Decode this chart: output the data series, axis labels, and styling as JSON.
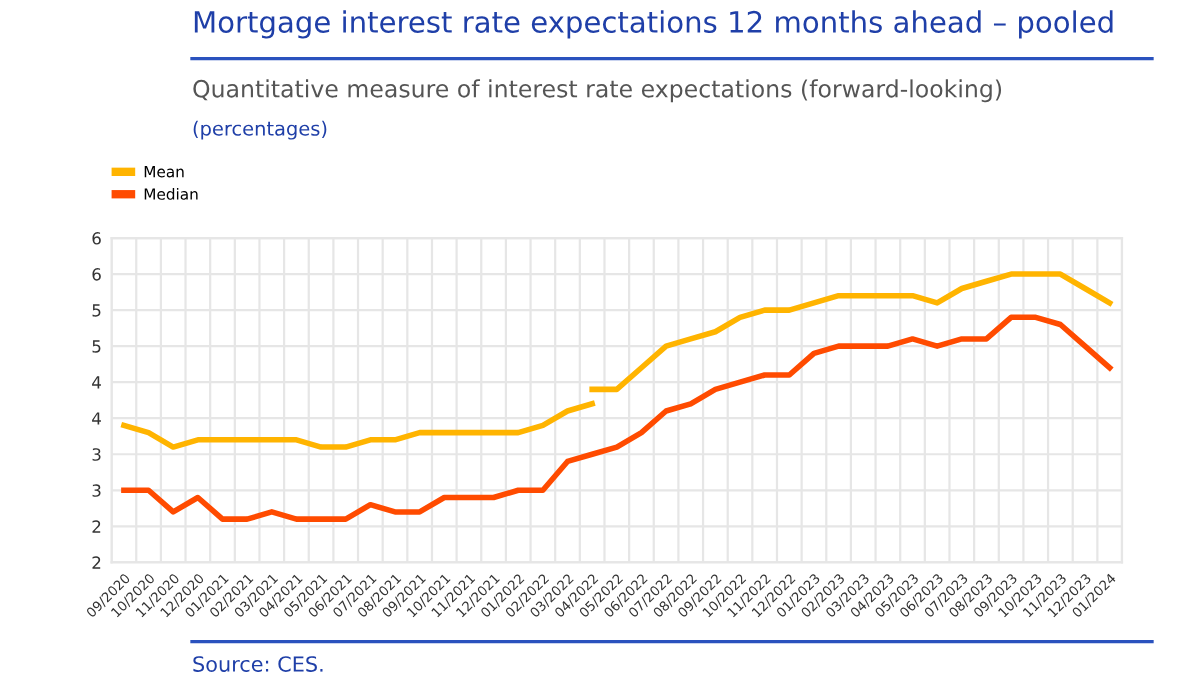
{
  "chart_data": {
    "type": "line",
    "title": "Mortgage interest rate expectations 12 months ahead – pooled",
    "subtitle": "Quantitative measure of interest rate expectations (forward-looking)",
    "annotations": [
      "(percentages)",
      "Source: CES."
    ],
    "categories": [
      "09/2020",
      "10/2020",
      "11/2020",
      "12/2020",
      "01/2021",
      "02/2021",
      "03/2021",
      "04/2021",
      "05/2021",
      "06/2021",
      "07/2021",
      "08/2021",
      "09/2021",
      "10/2021",
      "11/2021",
      "12/2021",
      "01/2022",
      "02/2022",
      "03/2022",
      "04/2022",
      "05/2022",
      "06/2022",
      "07/2022",
      "08/2022",
      "09/2022",
      "10/2022",
      "11/2022",
      "12/2022",
      "01/2023",
      "02/2023",
      "03/2023",
      "04/2023",
      "05/2023",
      "06/2023",
      "07/2023",
      "08/2023",
      "09/2023",
      "10/2023",
      "11/2023",
      "12/2023",
      "01/2024"
    ],
    "series": [
      {
        "name": "Mean",
        "color": "#ffb400",
        "values": [
          3.4,
          3.3,
          3.1,
          3.2,
          3.2,
          3.2,
          3.2,
          3.2,
          3.1,
          3.1,
          3.2,
          3.2,
          3.3,
          3.3,
          3.3,
          3.3,
          3.3,
          3.4,
          3.6,
          3.7,
          null,
          null,
          null,
          null,
          null,
          null,
          null,
          null,
          null,
          null,
          null,
          null,
          null,
          null,
          null,
          null,
          null,
          null,
          null,
          null,
          null
        ]
      },
      {
        "color": "#ffb400",
        "values": [
          null,
          null,
          null,
          null,
          null,
          null,
          null,
          null,
          null,
          null,
          null,
          null,
          null,
          null,
          null,
          null,
          null,
          null,
          null,
          3.9,
          3.9,
          4.2,
          4.5,
          4.6,
          4.7,
          4.9,
          5.0,
          5.0,
          5.1,
          5.2,
          5.2,
          5.2,
          5.2,
          5.1,
          5.3,
          5.4,
          5.5,
          5.5,
          5.5,
          5.3,
          5.1
        ]
      },
      {
        "name": "Median",
        "color": "#ff4b00",
        "values": [
          2.5,
          2.5,
          2.2,
          2.4,
          2.1,
          2.1,
          2.2,
          2.1,
          2.1,
          2.1,
          2.3,
          2.2,
          2.2,
          2.4,
          2.4,
          2.4,
          2.5,
          2.5,
          2.9,
          3.0,
          3.1,
          3.3,
          3.6,
          3.7,
          3.9,
          4.0,
          4.1,
          4.1,
          4.4,
          4.5,
          4.5,
          4.5,
          4.6,
          4.5,
          4.6,
          4.6,
          4.9,
          4.9,
          4.8,
          4.5,
          4.2
        ]
      }
    ],
    "ylim": [
      1.5,
      6
    ],
    "yticks": [
      {
        "value": 1.5,
        "label": "2"
      },
      2,
      {
        "value": 2.5,
        "label": "3"
      },
      3,
      {
        "value": 3.5,
        "label": "4"
      },
      4,
      {
        "value": 4.5,
        "label": "5"
      },
      5,
      {
        "value": 5.5,
        "label": "6"
      },
      6
    ],
    "grid": true,
    "legend": "top left",
    "line_style": "solid",
    "marker": "none"
  }
}
